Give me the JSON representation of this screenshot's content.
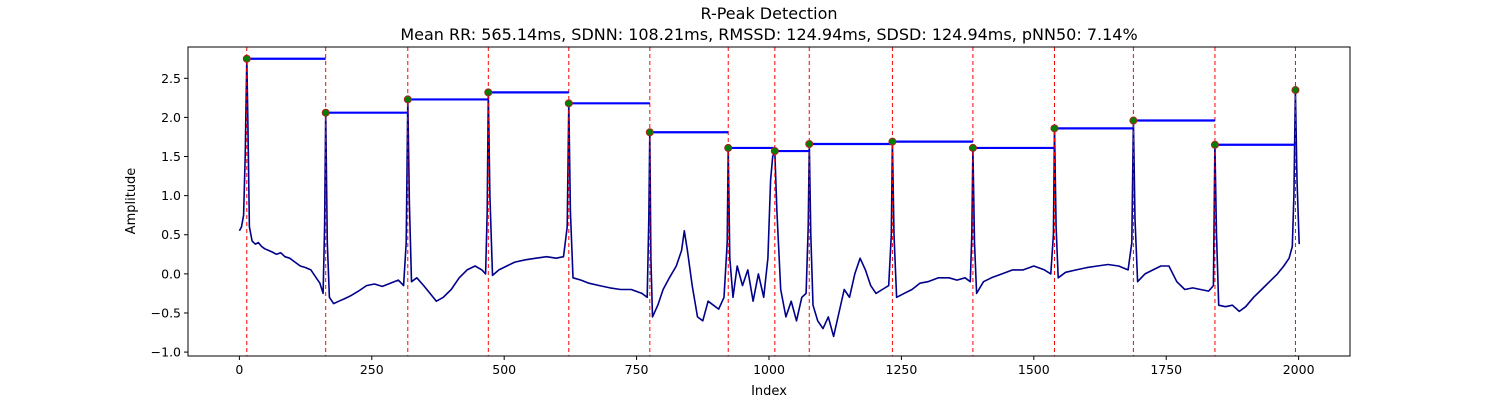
{
  "chart_data": {
    "type": "line",
    "title": "R-Peak Detection",
    "subtitle": "Mean RR: 565.14ms, SDNN: 108.21ms, RMSSD: 124.94ms, SDSD: 124.94ms, pNN50: 7.14%",
    "xlabel": "Index",
    "ylabel": "Amplitude",
    "xlim": [
      -97,
      2097
    ],
    "ylim": [
      -1.05,
      2.9
    ],
    "xticks": [
      0,
      250,
      500,
      750,
      1000,
      1250,
      1500,
      1750,
      2000
    ],
    "yticks": [
      -1.0,
      -0.5,
      0.0,
      0.5,
      1.0,
      1.5,
      2.0,
      2.5
    ],
    "grid": false,
    "colors": {
      "signal": "#00008b",
      "peak_lines": "#ff0000",
      "rr_segments": "#0000ff",
      "peak_marker_fill": "#008000",
      "peak_marker_edge": "#b22222"
    },
    "r_peaks": [
      {
        "x": 14,
        "y": 2.75
      },
      {
        "x": 163,
        "y": 2.06
      },
      {
        "x": 318,
        "y": 2.23
      },
      {
        "x": 470,
        "y": 2.32
      },
      {
        "x": 622,
        "y": 2.18
      },
      {
        "x": 775,
        "y": 1.81
      },
      {
        "x": 923,
        "y": 1.61
      },
      {
        "x": 1011,
        "y": 1.57
      },
      {
        "x": 1076,
        "y": 1.66
      },
      {
        "x": 1233,
        "y": 1.69
      },
      {
        "x": 1385,
        "y": 1.61
      },
      {
        "x": 1539,
        "y": 1.86
      },
      {
        "x": 1688,
        "y": 1.96
      },
      {
        "x": 1842,
        "y": 1.65
      },
      {
        "x": 1994,
        "y": 2.35
      }
    ],
    "signal": [
      [
        0,
        0.55
      ],
      [
        4,
        0.6
      ],
      [
        8,
        0.75
      ],
      [
        11,
        1.5
      ],
      [
        14,
        2.75
      ],
      [
        16,
        2.0
      ],
      [
        19,
        0.6
      ],
      [
        24,
        0.42
      ],
      [
        30,
        0.38
      ],
      [
        36,
        0.4
      ],
      [
        42,
        0.35
      ],
      [
        48,
        0.32
      ],
      [
        55,
        0.3
      ],
      [
        62,
        0.28
      ],
      [
        70,
        0.25
      ],
      [
        78,
        0.27
      ],
      [
        86,
        0.22
      ],
      [
        95,
        0.2
      ],
      [
        105,
        0.15
      ],
      [
        115,
        0.1
      ],
      [
        125,
        0.08
      ],
      [
        135,
        0.05
      ],
      [
        145,
        -0.05
      ],
      [
        152,
        -0.12
      ],
      [
        158,
        -0.25
      ],
      [
        161,
        0.6
      ],
      [
        163,
        2.06
      ],
      [
        166,
        0.4
      ],
      [
        170,
        -0.3
      ],
      [
        178,
        -0.38
      ],
      [
        188,
        -0.35
      ],
      [
        198,
        -0.32
      ],
      [
        210,
        -0.28
      ],
      [
        225,
        -0.22
      ],
      [
        240,
        -0.15
      ],
      [
        255,
        -0.13
      ],
      [
        270,
        -0.16
      ],
      [
        285,
        -0.12
      ],
      [
        300,
        -0.08
      ],
      [
        310,
        -0.15
      ],
      [
        315,
        0.4
      ],
      [
        318,
        2.23
      ],
      [
        321,
        0.9
      ],
      [
        325,
        -0.1
      ],
      [
        335,
        -0.05
      ],
      [
        348,
        -0.15
      ],
      [
        360,
        -0.25
      ],
      [
        372,
        -0.35
      ],
      [
        385,
        -0.3
      ],
      [
        400,
        -0.2
      ],
      [
        415,
        -0.05
      ],
      [
        430,
        0.05
      ],
      [
        445,
        0.1
      ],
      [
        458,
        0.05
      ],
      [
        465,
        0.0
      ],
      [
        468,
        0.8
      ],
      [
        470,
        2.32
      ],
      [
        473,
        1.0
      ],
      [
        478,
        -0.02
      ],
      [
        490,
        0.05
      ],
      [
        505,
        0.1
      ],
      [
        520,
        0.15
      ],
      [
        540,
        0.18
      ],
      [
        560,
        0.2
      ],
      [
        580,
        0.22
      ],
      [
        598,
        0.2
      ],
      [
        612,
        0.22
      ],
      [
        619,
        0.6
      ],
      [
        622,
        2.18
      ],
      [
        625,
        0.8
      ],
      [
        630,
        -0.05
      ],
      [
        645,
        -0.08
      ],
      [
        660,
        -0.12
      ],
      [
        680,
        -0.15
      ],
      [
        700,
        -0.18
      ],
      [
        720,
        -0.2
      ],
      [
        740,
        -0.2
      ],
      [
        760,
        -0.25
      ],
      [
        770,
        -0.3
      ],
      [
        773,
        0.7
      ],
      [
        775,
        1.81
      ],
      [
        777,
        0.2
      ],
      [
        780,
        -0.55
      ],
      [
        790,
        -0.4
      ],
      [
        800,
        -0.2
      ],
      [
        812,
        -0.05
      ],
      [
        825,
        0.1
      ],
      [
        835,
        0.3
      ],
      [
        840,
        0.55
      ],
      [
        846,
        0.3
      ],
      [
        855,
        -0.15
      ],
      [
        865,
        -0.55
      ],
      [
        875,
        -0.6
      ],
      [
        885,
        -0.35
      ],
      [
        895,
        -0.4
      ],
      [
        905,
        -0.45
      ],
      [
        915,
        -0.3
      ],
      [
        921,
        0.4
      ],
      [
        923,
        1.61
      ],
      [
        926,
        0.2
      ],
      [
        932,
        -0.3
      ],
      [
        940,
        0.1
      ],
      [
        950,
        -0.15
      ],
      [
        960,
        0.05
      ],
      [
        970,
        -0.35
      ],
      [
        980,
        0.0
      ],
      [
        990,
        -0.3
      ],
      [
        998,
        0.2
      ],
      [
        1003,
        1.2
      ],
      [
        1007,
        1.5
      ],
      [
        1011,
        1.57
      ],
      [
        1015,
        0.8
      ],
      [
        1022,
        -0.2
      ],
      [
        1032,
        -0.55
      ],
      [
        1042,
        -0.35
      ],
      [
        1052,
        -0.6
      ],
      [
        1062,
        -0.3
      ],
      [
        1070,
        -0.25
      ],
      [
        1074,
        0.6
      ],
      [
        1076,
        1.66
      ],
      [
        1079,
        0.5
      ],
      [
        1083,
        -0.4
      ],
      [
        1092,
        -0.6
      ],
      [
        1102,
        -0.7
      ],
      [
        1112,
        -0.55
      ],
      [
        1122,
        -0.8
      ],
      [
        1132,
        -0.5
      ],
      [
        1142,
        -0.2
      ],
      [
        1152,
        -0.3
      ],
      [
        1162,
        0.0
      ],
      [
        1172,
        0.2
      ],
      [
        1182,
        0.05
      ],
      [
        1192,
        -0.15
      ],
      [
        1202,
        -0.25
      ],
      [
        1214,
        -0.2
      ],
      [
        1226,
        -0.15
      ],
      [
        1231,
        0.5
      ],
      [
        1233,
        1.69
      ],
      [
        1236,
        0.5
      ],
      [
        1241,
        -0.3
      ],
      [
        1255,
        -0.25
      ],
      [
        1270,
        -0.2
      ],
      [
        1285,
        -0.12
      ],
      [
        1300,
        -0.1
      ],
      [
        1320,
        -0.05
      ],
      [
        1340,
        -0.05
      ],
      [
        1355,
        -0.08
      ],
      [
        1370,
        -0.05
      ],
      [
        1380,
        -0.1
      ],
      [
        1383,
        0.5
      ],
      [
        1385,
        1.61
      ],
      [
        1388,
        0.4
      ],
      [
        1392,
        -0.25
      ],
      [
        1405,
        -0.1
      ],
      [
        1420,
        -0.05
      ],
      [
        1440,
        0.0
      ],
      [
        1460,
        0.05
      ],
      [
        1480,
        0.05
      ],
      [
        1500,
        0.1
      ],
      [
        1520,
        0.05
      ],
      [
        1532,
        0.0
      ],
      [
        1537,
        0.5
      ],
      [
        1539,
        1.86
      ],
      [
        1542,
        0.6
      ],
      [
        1546,
        -0.05
      ],
      [
        1560,
        0.02
      ],
      [
        1580,
        0.05
      ],
      [
        1600,
        0.08
      ],
      [
        1620,
        0.1
      ],
      [
        1640,
        0.12
      ],
      [
        1660,
        0.1
      ],
      [
        1678,
        0.05
      ],
      [
        1685,
        0.4
      ],
      [
        1688,
        1.96
      ],
      [
        1691,
        0.7
      ],
      [
        1696,
        -0.1
      ],
      [
        1710,
        0.0
      ],
      [
        1725,
        0.05
      ],
      [
        1740,
        0.1
      ],
      [
        1755,
        0.1
      ],
      [
        1770,
        -0.1
      ],
      [
        1785,
        -0.2
      ],
      [
        1800,
        -0.18
      ],
      [
        1815,
        -0.2
      ],
      [
        1830,
        -0.22
      ],
      [
        1839,
        -0.15
      ],
      [
        1842,
        1.65
      ],
      [
        1845,
        0.5
      ],
      [
        1849,
        -0.4
      ],
      [
        1862,
        -0.42
      ],
      [
        1875,
        -0.4
      ],
      [
        1888,
        -0.48
      ],
      [
        1900,
        -0.42
      ],
      [
        1915,
        -0.3
      ],
      [
        1930,
        -0.2
      ],
      [
        1945,
        -0.1
      ],
      [
        1960,
        0.0
      ],
      [
        1972,
        0.1
      ],
      [
        1982,
        0.2
      ],
      [
        1988,
        0.35
      ],
      [
        1991,
        1.0
      ],
      [
        1994,
        2.35
      ],
      [
        1997,
        1.2
      ],
      [
        2001,
        0.38
      ]
    ]
  }
}
